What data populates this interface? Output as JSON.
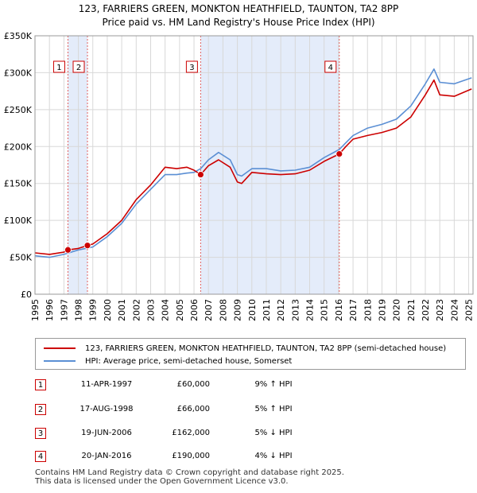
{
  "chart_data": {
    "type": "line",
    "title": "123, FARRIERS GREEN, MONKTON HEATHFIELD, TAUNTON, TA2 8PP",
    "subtitle": "Price paid vs. HM Land Registry's House Price Index (HPI)",
    "xlim": [
      1995,
      2025.3
    ],
    "ylim": [
      0,
      350000
    ],
    "x_ticks": [
      1995,
      1996,
      1997,
      1998,
      1999,
      2000,
      2001,
      2002,
      2003,
      2004,
      2005,
      2006,
      2007,
      2008,
      2009,
      2010,
      2011,
      2012,
      2013,
      2014,
      2015,
      2016,
      2017,
      2018,
      2019,
      2020,
      2021,
      2022,
      2023,
      2024,
      2025
    ],
    "y_ticks": [
      {
        "value": 0,
        "label": "£0"
      },
      {
        "value": 50000,
        "label": "£50K"
      },
      {
        "value": 100000,
        "label": "£100K"
      },
      {
        "value": 150000,
        "label": "£150K"
      },
      {
        "value": 200000,
        "label": "£200K"
      },
      {
        "value": 250000,
        "label": "£250K"
      },
      {
        "value": 300000,
        "label": "£300K"
      },
      {
        "value": 350000,
        "label": "£350K"
      }
    ],
    "grid": true,
    "shaded_periods": [
      [
        1997.28,
        1998.63
      ],
      [
        2006.46,
        2016.05
      ]
    ],
    "series": [
      {
        "name": "123, FARRIERS GREEN, MONKTON HEATHFIELD, TAUNTON, TA2 8PP (semi-detached house)",
        "color": "#cc0000",
        "x": [
          1995,
          1996,
          1997,
          1997.28,
          1998,
          1998.63,
          1999,
          2000,
          2001,
          2002,
          2003,
          2004,
          2004.8,
          2005.5,
          2006,
          2006.46,
          2007,
          2007.7,
          2008.5,
          2009,
          2009.3,
          2010,
          2011,
          2012,
          2013,
          2014,
          2015,
          2016.05,
          2016.5,
          2017,
          2018,
          2019,
          2020,
          2021,
          2022,
          2022.6,
          2023,
          2024,
          2025.2
        ],
        "values": [
          56000,
          54000,
          57000,
          60000,
          62000,
          66000,
          68000,
          82000,
          100000,
          128000,
          148000,
          172000,
          170000,
          172000,
          168000,
          162000,
          174000,
          182000,
          172000,
          152000,
          150000,
          165000,
          163000,
          162000,
          163000,
          168000,
          180000,
          190000,
          200000,
          210000,
          215000,
          219000,
          225000,
          240000,
          270000,
          290000,
          270000,
          268000,
          278000
        ]
      },
      {
        "name": "HPI: Average price, semi-detached house, Somerset",
        "color": "#5b8fd4",
        "x": [
          1995,
          1996,
          1997,
          1998,
          1999,
          2000,
          2001,
          2002,
          2003,
          2004,
          2004.8,
          2005.5,
          2006,
          2006.46,
          2007,
          2007.7,
          2008.5,
          2009,
          2009.3,
          2010,
          2011,
          2012,
          2013,
          2014,
          2015,
          2016.05,
          2016.5,
          2017,
          2018,
          2019,
          2020,
          2021,
          2022,
          2022.6,
          2023,
          2024,
          2025.2
        ],
        "values": [
          52000,
          50000,
          54000,
          60000,
          64000,
          78000,
          96000,
          122000,
          142000,
          162000,
          162000,
          164000,
          165000,
          170000,
          182000,
          192000,
          182000,
          162000,
          160000,
          170000,
          170000,
          167000,
          168000,
          172000,
          185000,
          196000,
          205000,
          215000,
          225000,
          230000,
          237000,
          255000,
          285000,
          305000,
          287000,
          285000,
          293000
        ]
      }
    ],
    "sales": [
      {
        "id": "1",
        "x": 1997.28,
        "value": 60000
      },
      {
        "id": "2",
        "x": 1998.63,
        "value": 66000
      },
      {
        "id": "3",
        "x": 2006.46,
        "value": 162000
      },
      {
        "id": "4",
        "x": 2016.05,
        "value": 190000
      }
    ]
  },
  "legend": {
    "property_label": "123, FARRIERS GREEN, MONKTON HEATHFIELD, TAUNTON, TA2 8PP (semi-detached house)",
    "hpi_label": "HPI: Average price, semi-detached house, Somerset"
  },
  "sales_table": [
    {
      "num": "1",
      "date": "11-APR-1997",
      "price": "£60,000",
      "hpi": "9% ↑ HPI"
    },
    {
      "num": "2",
      "date": "17-AUG-1998",
      "price": "£66,000",
      "hpi": "5% ↑ HPI"
    },
    {
      "num": "3",
      "date": "19-JUN-2006",
      "price": "£162,000",
      "hpi": "5% ↓ HPI"
    },
    {
      "num": "4",
      "date": "20-JAN-2016",
      "price": "£190,000",
      "hpi": "4% ↓ HPI"
    }
  ],
  "footer": {
    "line1": "Contains HM Land Registry data © Crown copyright and database right 2025.",
    "line2": "This data is licensed under the Open Government Licence v3.0."
  }
}
